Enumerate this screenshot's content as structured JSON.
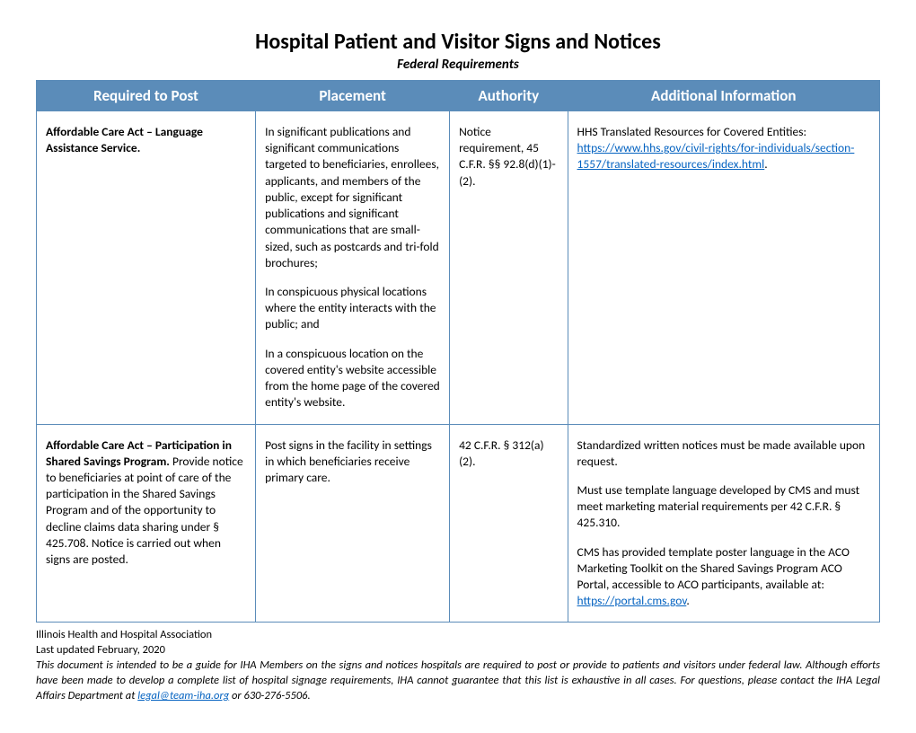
{
  "title": "Hospital Patient and Visitor Signs and Notices",
  "subtitle": "Federal Requirements",
  "colors": {
    "header_bg": "#5b8cb9",
    "border": "#5b8cb9",
    "text": "#000000",
    "link": "#0563c1",
    "background": "#ffffff"
  },
  "columns": {
    "required": "Required to Post",
    "placement": "Placement",
    "authority": "Authority",
    "additional": "Additional Information"
  },
  "rows": [
    {
      "required_bold": "Affordable Care Act – Language Assistance Service.",
      "required_rest": "",
      "placement_p1": "In significant publications and significant communications targeted to beneficiaries, enrollees, applicants, and members of the public, except for significant publications and significant communications that are small-sized, such as postcards and tri-fold brochures;",
      "placement_p2": "In conspicuous physical locations where the entity interacts with the public; and",
      "placement_p3": "In a conspicuous location on the covered entity's website accessible from the home page of the covered entity's website.",
      "authority": "Notice requirement, 45 C.F.R. §§ 92.8(d)(1)-(2).",
      "additional_pre": "HHS Translated Resources for Covered Entities: ",
      "additional_link_text": "https://www.hhs.gov/civil-rights/for-individuals/section-1557/translated-resources/index.html",
      "additional_post": "."
    },
    {
      "required_bold": "Affordable Care Act – Participation in Shared Savings Program.",
      "required_rest": "Provide notice to beneficiaries at point of care of the participation in the Shared Savings Program and of the opportunity to decline claims data sharing under § 425.708. Notice is carried out when signs are posted.",
      "placement_p1": "Post signs in the facility in settings in which beneficiaries receive primary care.",
      "placement_p2": "",
      "placement_p3": "",
      "authority": "42 C.F.R. § 312(a)(2).",
      "additional_p1": "Standardized written notices must be made available upon request.",
      "additional_p2": "Must use template language developed by CMS and must meet marketing material requirements per 42 C.F.R. § 425.310.",
      "additional_p3_pre": "CMS has provided template poster language in the ACO Marketing Toolkit on the Shared Savings Program ACO Portal, accessible to ACO participants, available at: ",
      "additional_p3_link": "https://portal.cms.gov",
      "additional_p3_post": "."
    }
  ],
  "footer": {
    "org": "Illinois Health and Hospital Association",
    "updated": "Last updated February, 2020",
    "disclaimer_pre": "This document is intended to be a guide for IHA Members on the signs and notices hospitals are required to post or provide to patients and visitors under federal law. Although efforts have been made to develop a complete list of hospital signage requirements, IHA cannot guarantee that this list is exhaustive in all cases. For questions, please contact the IHA Legal Affairs Department at ",
    "disclaimer_email": "legal@team-iha.org",
    "disclaimer_post": " or 630-276-5506."
  }
}
